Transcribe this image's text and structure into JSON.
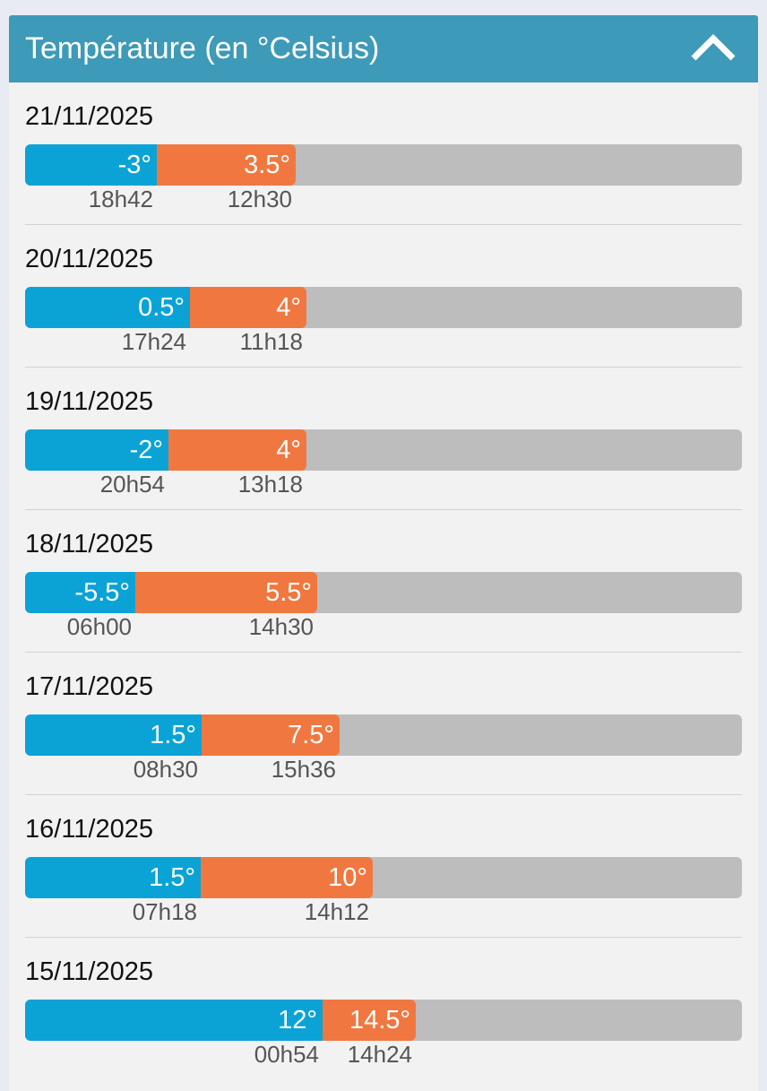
{
  "header": {
    "title": "Température (en °Celsius)",
    "collapse_icon": "chevron-up-icon"
  },
  "colors": {
    "header": "#3d9ab9",
    "min": "#0ba3d6",
    "max": "#f07840",
    "track": "#bdbdbd"
  },
  "days": [
    {
      "date": "21/11/2025",
      "min": "-3°",
      "min_time": "18h42",
      "max": "3.5°",
      "max_time": "12h30"
    },
    {
      "date": "20/11/2025",
      "min": "0.5°",
      "min_time": "17h24",
      "max": "4°",
      "max_time": "11h18"
    },
    {
      "date": "19/11/2025",
      "min": "-2°",
      "min_time": "20h54",
      "max": "4°",
      "max_time": "13h18"
    },
    {
      "date": "18/11/2025",
      "min": "-5.5°",
      "min_time": "06h00",
      "max": "5.5°",
      "max_time": "14h30"
    },
    {
      "date": "17/11/2025",
      "min": "1.5°",
      "min_time": "08h30",
      "max": "7.5°",
      "max_time": "15h36"
    },
    {
      "date": "16/11/2025",
      "min": "1.5°",
      "min_time": "07h18",
      "max": "10°",
      "max_time": "14h12"
    },
    {
      "date": "15/11/2025",
      "min": "12°",
      "min_time": "00h54",
      "max": "14.5°",
      "max_time": "14h24"
    }
  ]
}
